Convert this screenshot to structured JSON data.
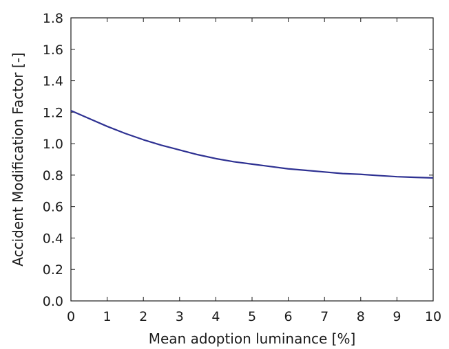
{
  "chart_data": {
    "type": "line",
    "title": "",
    "xlabel": "Mean adoption luminance [%]",
    "ylabel": "Accident Modification Factor [-]",
    "xlim": [
      0,
      10
    ],
    "ylim": [
      0.0,
      1.8
    ],
    "x_ticks": [
      "0",
      "1",
      "2",
      "3",
      "4",
      "5",
      "6",
      "7",
      "8",
      "9",
      "10"
    ],
    "y_ticks": [
      "0.0",
      "0.2",
      "0.4",
      "0.6",
      "0.8",
      "1.0",
      "1.2",
      "1.4",
      "1.6",
      "1.8"
    ],
    "grid": false,
    "legend": "none",
    "series": [
      {
        "color": "#2e3192",
        "x": [
          0,
          0.5,
          1,
          1.5,
          2,
          2.5,
          3,
          3.5,
          4,
          4.5,
          5,
          5.5,
          6,
          6.5,
          7,
          7.5,
          8,
          8.5,
          9,
          9.5,
          10
        ],
        "y": [
          1.21,
          1.16,
          1.11,
          1.065,
          1.025,
          0.99,
          0.96,
          0.93,
          0.905,
          0.885,
          0.87,
          0.855,
          0.84,
          0.83,
          0.82,
          0.81,
          0.805,
          0.797,
          0.79,
          0.786,
          0.782
        ]
      }
    ]
  }
}
